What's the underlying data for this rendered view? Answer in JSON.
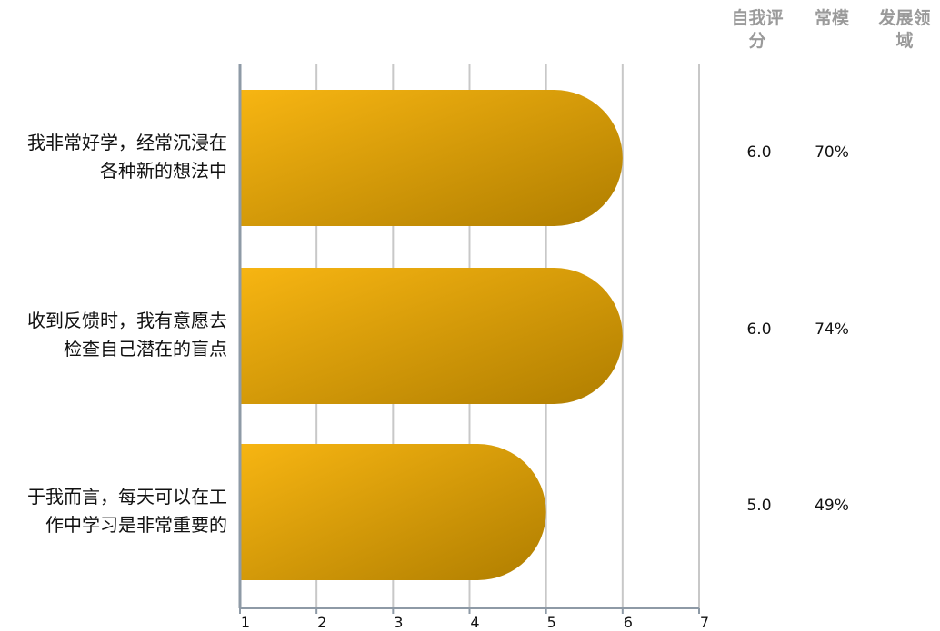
{
  "columns": {
    "self_score": [
      "自我评",
      "分"
    ],
    "norm": [
      "常模"
    ],
    "dev_area": [
      "发展领",
      "域"
    ]
  },
  "rows": [
    {
      "label_lines": [
        "我非常好学，经常沉浸在",
        "各种新的想法中"
      ],
      "score": "6.0",
      "norm": "70%"
    },
    {
      "label_lines": [
        "收到反馈时，我有意愿去",
        "检查自己潜在的盲点"
      ],
      "score": "6.0",
      "norm": "74%"
    },
    {
      "label_lines": [
        "于我而言，每天可以在工",
        "作中学习是非常重要的"
      ],
      "score": "5.0",
      "norm": "49%"
    }
  ],
  "chart_data": {
    "type": "bar",
    "orientation": "horizontal",
    "categories": [
      "我非常好学，经常沉浸在各种新的想法中",
      "收到反馈时，我有意愿去检查自己潜在的盲点",
      "于我而言，每天可以在工作中学习是非常重要的"
    ],
    "values": [
      6.0,
      6.0,
      5.0
    ],
    "xlim": [
      1,
      7
    ],
    "xticks": [
      1,
      2,
      3,
      4,
      5,
      6,
      7
    ],
    "grid": true,
    "colors": {
      "bar_start": "#F7B512",
      "bar_end": "#B07E00",
      "grid": "#C8C8C8",
      "axis": "#8E9AA6"
    }
  }
}
